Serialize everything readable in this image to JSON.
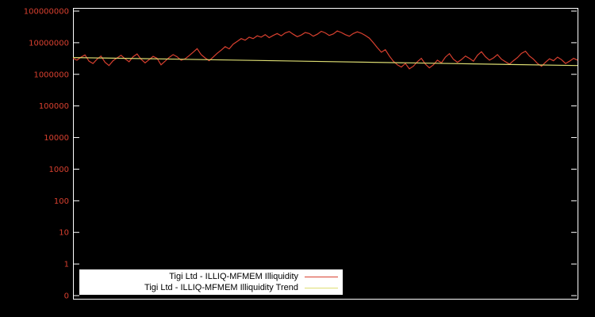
{
  "chart_data": {
    "type": "line",
    "title": "",
    "xlabel": "",
    "ylabel": "",
    "yscale": "log",
    "grid": false,
    "legend_position": "bottom-center-inside",
    "colors": {
      "background": "#000000",
      "axis": "#ffffff",
      "tick_label": "#d9402f",
      "legend_background": "#ffffff",
      "legend_text": "#000000"
    },
    "y_tick_labels": [
      "100000000",
      "10000000",
      "1000000",
      "100000",
      "10000",
      "1000",
      "100",
      "10",
      "1",
      "0"
    ],
    "y_top_value": 100000000,
    "value_unit": "millions",
    "series": [
      {
        "name": "Tigi Ltd - ILLIQ-MFMEM Illiquidity",
        "color": "#d9402f",
        "values_millions": [
          3.2,
          2.8,
          3.5,
          4.1,
          2.6,
          2.2,
          3.0,
          3.8,
          2.4,
          1.9,
          2.7,
          3.3,
          4.0,
          3.1,
          2.5,
          3.6,
          4.4,
          3.0,
          2.3,
          2.9,
          3.7,
          3.2,
          2.0,
          2.6,
          3.4,
          4.2,
          3.6,
          2.8,
          3.1,
          3.9,
          5.0,
          6.5,
          4.2,
          3.3,
          2.7,
          3.5,
          4.6,
          5.8,
          7.5,
          6.4,
          9.0,
          11.0,
          13.5,
          12.0,
          15.0,
          13.5,
          16.5,
          15.0,
          18.0,
          14.5,
          17.0,
          19.5,
          16.5,
          20.5,
          22.5,
          18.5,
          15.5,
          17.5,
          21.0,
          19.5,
          16.0,
          18.5,
          23.0,
          20.5,
          17.0,
          19.0,
          23.5,
          21.0,
          18.0,
          16.0,
          19.5,
          22.0,
          20.0,
          17.0,
          14.0,
          10.0,
          7.0,
          5.0,
          6.0,
          3.8,
          2.6,
          2.0,
          1.7,
          2.2,
          1.5,
          1.8,
          2.5,
          3.2,
          2.1,
          1.6,
          2.0,
          2.8,
          2.3,
          3.5,
          4.5,
          3.0,
          2.4,
          2.9,
          3.8,
          3.2,
          2.6,
          4.0,
          5.2,
          3.6,
          2.8,
          3.3,
          4.2,
          3.0,
          2.5,
          2.1,
          2.7,
          3.4,
          4.6,
          5.4,
          3.8,
          3.0,
          2.2,
          1.8,
          2.4,
          3.1,
          2.7,
          3.5,
          2.9,
          2.2,
          2.6,
          3.2,
          2.8
        ]
      },
      {
        "name": "Tigi Ltd - ILLIQ-MFMEM Illiquidity Trend",
        "color": "#dede73",
        "start_millions": 3.4,
        "end_millions": 1.9
      }
    ]
  },
  "legend": {
    "entries": [
      {
        "label": "Tigi Ltd - ILLIQ-MFMEM Illiquidity"
      },
      {
        "label": "Tigi Ltd - ILLIQ-MFMEM Illiquidity Trend"
      }
    ]
  }
}
